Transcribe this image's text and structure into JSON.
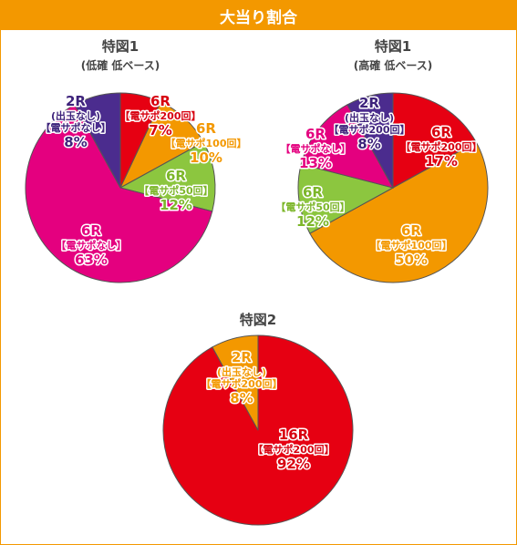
{
  "header": {
    "title": "大当り割合"
  },
  "colors": {
    "red": "#e60012",
    "orange": "#f39800",
    "green": "#8cc63f",
    "magenta": "#e4007f",
    "purple": "#4b2c8e",
    "label_red": "#d7000f",
    "label_orange": "#f39800",
    "label_green": "#7cb629",
    "label_magenta": "#e4007f",
    "label_purple": "#3e237b"
  },
  "chart_data": [
    {
      "type": "pie",
      "title": "特図1",
      "subtitle": "(低確 低ベース)",
      "slices": [
        {
          "round": "6R",
          "desc": "【電サポ200回】",
          "pct": "7%",
          "value": 7,
          "color": "red"
        },
        {
          "round": "6R",
          "desc": "【電サポ100回】",
          "pct": "10%",
          "value": 10,
          "color": "orange"
        },
        {
          "round": "6R",
          "desc": "【電サポ50回】",
          "pct": "12%",
          "value": 12,
          "color": "green"
        },
        {
          "round": "6R",
          "desc": "【電サポなし】",
          "pct": "63%",
          "value": 63,
          "color": "magenta"
        },
        {
          "round": "2R",
          "desc": "(出玉なし)",
          "desc2": "【電サポなし】",
          "pct": "8%",
          "value": 8,
          "color": "purple"
        }
      ]
    },
    {
      "type": "pie",
      "title": "特図1",
      "subtitle": "(高確 低ベース)",
      "slices": [
        {
          "round": "6R",
          "desc": "【電サポ200回】",
          "pct": "17%",
          "value": 17,
          "color": "red"
        },
        {
          "round": "6R",
          "desc": "【電サポ100回】",
          "pct": "50%",
          "value": 50,
          "color": "orange"
        },
        {
          "round": "6R",
          "desc": "【電サポ50回】",
          "pct": "12%",
          "value": 12,
          "color": "green"
        },
        {
          "round": "6R",
          "desc": "【電サポなし】",
          "pct": "13%",
          "value": 13,
          "color": "magenta"
        },
        {
          "round": "2R",
          "desc": "(出玉なし)",
          "desc2": "【電サポ200回】",
          "pct": "8%",
          "value": 8,
          "color": "purple"
        }
      ]
    },
    {
      "type": "pie",
      "title": "特図2",
      "subtitle": "",
      "slices": [
        {
          "round": "16R",
          "desc": "【電サポ200回】",
          "pct": "92%",
          "value": 92,
          "color": "red"
        },
        {
          "round": "2R",
          "desc": "(出玉なし)",
          "desc2": "【電サポ200回】",
          "pct": "8%",
          "value": 8,
          "color": "orange"
        }
      ]
    }
  ]
}
